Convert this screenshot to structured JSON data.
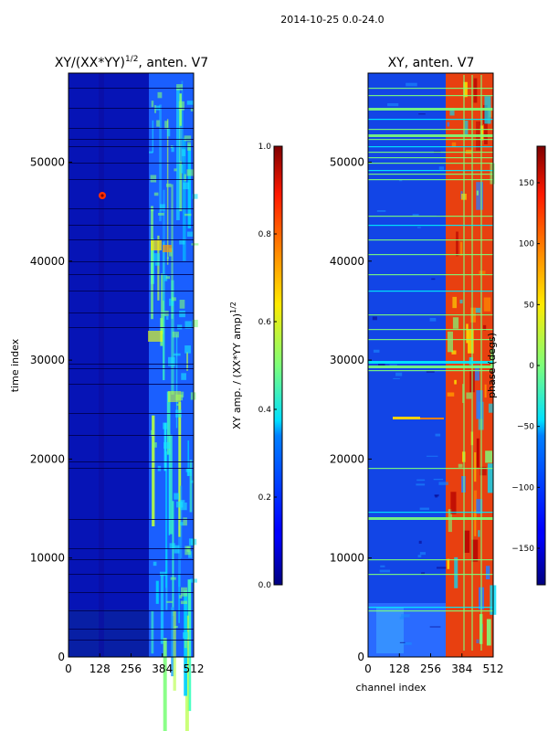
{
  "figure": {
    "suptitle": "2014-10-25 0.0-24.0"
  },
  "chart_data": [
    {
      "type": "heatmap",
      "title_main": "XY/(XX*YY)",
      "title_exp": "1/2",
      "title_tail": ", anten. V7",
      "xlabel": "",
      "ylabel": "time index",
      "xlim": [
        0,
        512
      ],
      "ylim": [
        0,
        59000
      ],
      "xticks": [
        0,
        128,
        256,
        384,
        512
      ],
      "yticks": [
        0,
        10000,
        20000,
        30000,
        40000,
        50000
      ],
      "colorbar": {
        "label_main": "XY amp. / (XX*YY amp)",
        "label_exp": "1/2",
        "range": [
          0.0,
          1.0
        ],
        "ticks": [
          0.0,
          0.2,
          0.4,
          0.6,
          0.8,
          1.0
        ],
        "tick_labels": [
          "0.0",
          "0.2",
          "0.4",
          "0.6",
          "0.8",
          "1.0"
        ]
      },
      "colormap": "jet"
    },
    {
      "type": "heatmap",
      "title_main": "XY, anten. V7",
      "title_exp": "",
      "title_tail": "",
      "xlabel": "channel index",
      "ylabel": "",
      "xlim": [
        0,
        512
      ],
      "ylim": [
        0,
        59000
      ],
      "xticks": [
        0,
        128,
        256,
        384,
        512
      ],
      "yticks": [
        0,
        10000,
        20000,
        30000,
        40000,
        50000
      ],
      "colorbar": {
        "label_main": "phase (degs)",
        "label_exp": "",
        "range": [
          -180,
          180
        ],
        "ticks": [
          -150,
          -100,
          -50,
          0,
          50,
          100,
          150
        ],
        "tick_labels": [
          "−150",
          "−100",
          "−50",
          "0",
          "50",
          "100",
          "150"
        ]
      },
      "colormap": "jet"
    }
  ]
}
